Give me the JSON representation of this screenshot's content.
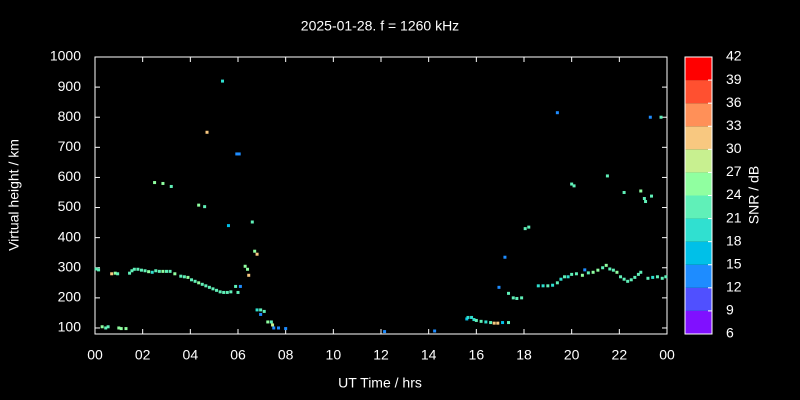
{
  "chart_data": {
    "type": "scatter",
    "title": "2025-01-28. f = 1260 kHz",
    "x_label": "UT Time / hrs",
    "y_label": "Virtual height / km",
    "colorbar_label": "SNR / dB",
    "xlim": [
      0,
      24
    ],
    "xticks": [
      {
        "value": 0,
        "label": "00"
      },
      {
        "value": 2,
        "label": "02"
      },
      {
        "value": 4,
        "label": "04"
      },
      {
        "value": 6,
        "label": "06"
      },
      {
        "value": 8,
        "label": "08"
      },
      10,
      12,
      14,
      16,
      18,
      20,
      22,
      {
        "value": 24,
        "label": "00"
      }
    ],
    "ylim": [
      80,
      1000
    ],
    "yticks": [
      100,
      200,
      300,
      400,
      500,
      600,
      700,
      800,
      900,
      1000
    ],
    "colorbar": {
      "lim": [
        6,
        42
      ],
      "ticks": [
        6,
        9,
        12,
        15,
        18,
        21,
        24,
        27,
        30,
        33,
        36,
        39,
        42
      ],
      "colors": [
        "#8010ff",
        "#5050ff",
        "#1e8cff",
        "#00c0e8",
        "#30e0d0",
        "#60f0b8",
        "#90ffa0",
        "#c8f090",
        "#f8c880",
        "#ff9058",
        "#ff5030",
        "#ff0000"
      ]
    },
    "x": [
      0.05,
      0.15,
      0.3,
      0.45,
      0.55,
      0.7,
      0.85,
      0.95,
      1.0,
      1.1,
      1.3,
      1.45,
      1.55,
      1.65,
      1.8,
      1.95,
      2.1,
      2.25,
      2.4,
      2.55,
      2.7,
      2.85,
      3.0,
      3.15,
      3.35,
      3.6,
      3.75,
      3.9,
      4.05,
      4.2,
      4.35,
      4.5,
      4.65,
      4.8,
      4.95,
      5.1,
      5.25,
      5.4,
      5.55,
      5.7,
      5.9,
      6.0,
      2.5,
      2.85,
      3.2,
      4.35,
      4.6,
      4.7,
      5.35,
      5.95,
      6.05,
      5.6,
      6.1,
      6.3,
      6.4,
      6.45,
      6.6,
      6.7,
      6.8,
      6.8,
      6.95,
      7.1,
      6.95,
      7.25,
      7.4,
      7.45,
      7.5,
      7.7,
      8.0,
      12.15,
      14.25,
      15.6,
      15.65,
      15.8,
      15.9,
      16.0,
      16.2,
      16.4,
      16.6,
      16.75,
      16.9,
      17.1,
      17.35,
      16.95,
      17.2,
      17.35,
      17.55,
      17.7,
      17.9,
      18.05,
      18.2,
      18.6,
      18.8,
      19.0,
      19.2,
      19.4,
      19.55,
      19.7,
      19.85,
      20.0,
      20.2,
      20.45,
      20.55,
      20.7,
      20.9,
      21.1,
      21.3,
      21.45,
      21.6,
      21.75,
      21.9,
      22.05,
      22.2,
      22.35,
      22.5,
      22.65,
      22.8,
      22.9,
      23.2,
      23.4,
      23.6,
      23.8,
      23.95,
      19.4,
      20.0,
      20.1,
      21.5,
      22.2,
      22.9,
      23.05,
      23.1,
      23.35,
      23.3,
      23.75
    ],
    "y": [
      296,
      293,
      104,
      100,
      104,
      280,
      282,
      280,
      100,
      98,
      98,
      282,
      290,
      295,
      295,
      292,
      290,
      287,
      285,
      290,
      288,
      288,
      288,
      288,
      280,
      272,
      270,
      268,
      260,
      255,
      250,
      245,
      240,
      235,
      230,
      225,
      220,
      218,
      218,
      220,
      238,
      218,
      583,
      580,
      570,
      508,
      503,
      750,
      920,
      678,
      678,
      440,
      238,
      305,
      295,
      275,
      452,
      355,
      345,
      160,
      160,
      155,
      145,
      120,
      120,
      110,
      100,
      100,
      98,
      88,
      90,
      130,
      135,
      135,
      128,
      125,
      122,
      120,
      118,
      116,
      116,
      118,
      118,
      235,
      335,
      215,
      200,
      198,
      200,
      430,
      435,
      240,
      240,
      240,
      242,
      250,
      262,
      270,
      270,
      278,
      280,
      275,
      293,
      283,
      285,
      292,
      300,
      308,
      296,
      292,
      285,
      270,
      262,
      255,
      260,
      268,
      278,
      285,
      265,
      268,
      270,
      265,
      270,
      815,
      578,
      572,
      605,
      550,
      555,
      530,
      520,
      538,
      800,
      800
    ],
    "snr": [
      21,
      22,
      25,
      23,
      21,
      30,
      24,
      23,
      26,
      25,
      24,
      21,
      23,
      21,
      22,
      23,
      22,
      24,
      20,
      21,
      23,
      24,
      22,
      23,
      24,
      22,
      23,
      24,
      23,
      22,
      24,
      22,
      23,
      22,
      21,
      23,
      22,
      21,
      22,
      23,
      21,
      22,
      24,
      24,
      23,
      24,
      23,
      31,
      18,
      13,
      14,
      16,
      12,
      24,
      25,
      30,
      22,
      25,
      32,
      20,
      22,
      21,
      14,
      24,
      23,
      28,
      14,
      13,
      12,
      12,
      12,
      17,
      18,
      19,
      18,
      22,
      21,
      20,
      21,
      30,
      30,
      16,
      21,
      14,
      14,
      22,
      21,
      22,
      21,
      21,
      22,
      20,
      19,
      21,
      20,
      21,
      18,
      21,
      20,
      21,
      23,
      24,
      14,
      23,
      24,
      24,
      23,
      25,
      23,
      22,
      25,
      23,
      22,
      21,
      22,
      23,
      21,
      22,
      21,
      20,
      21,
      22,
      21,
      12,
      21,
      22,
      23,
      22,
      24,
      22,
      21,
      23,
      12,
      22
    ]
  }
}
